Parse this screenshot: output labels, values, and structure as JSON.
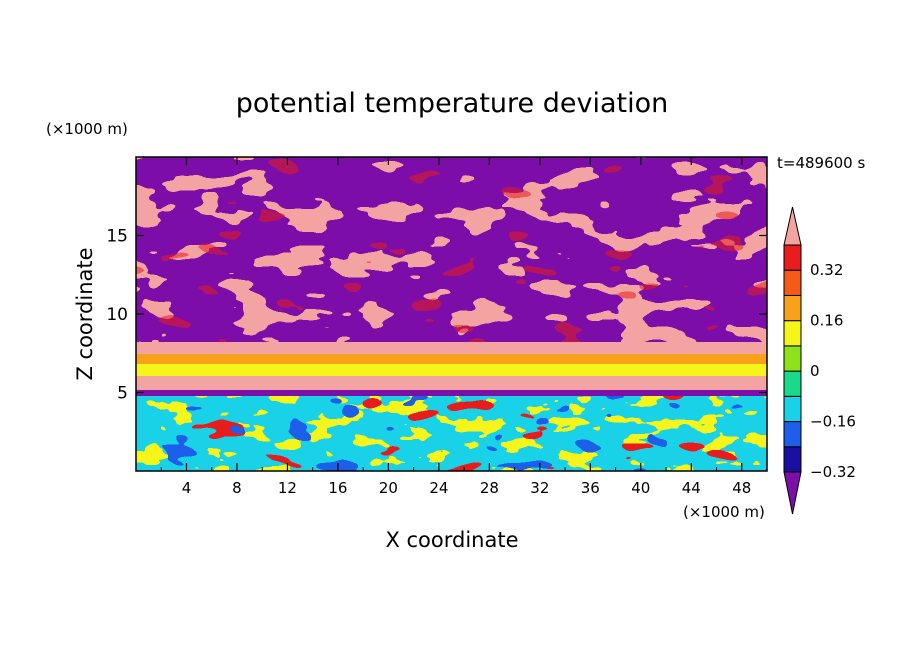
{
  "chart_data": {
    "type": "heatmap",
    "title": "potential temperature deviation",
    "time_label": "t=489600 s",
    "xlabel": "X coordinate",
    "ylabel": "Z coordinate",
    "x_unit": "(×1000 m)",
    "y_unit": "(×1000 m)",
    "xlim": [
      0,
      50
    ],
    "ylim": [
      0,
      20
    ],
    "x_ticks": [
      "4",
      "8",
      "12",
      "16",
      "20",
      "24",
      "28",
      "32",
      "36",
      "40",
      "44",
      "48"
    ],
    "y_ticks": [
      "5",
      "10",
      "15"
    ],
    "colorbar": {
      "levels": [
        -0.4,
        -0.32,
        -0.24,
        -0.16,
        -0.08,
        0,
        0.08,
        0.16,
        0.24,
        0.32,
        0.4
      ],
      "tick_labels": [
        "0.32",
        "0.16",
        "0",
        "−0.16",
        "−0.32"
      ],
      "colors": [
        "#7b0fa8",
        "#1a0fa0",
        "#1f5ee8",
        "#19d2e8",
        "#1bd98a",
        "#8ee21c",
        "#f5f51a",
        "#f7a21a",
        "#f55a18",
        "#e81e1e",
        "#f4a3a3"
      ],
      "extends": "both"
    },
    "bands": [
      {
        "z_range": [
          0,
          5
        ],
        "description_values": [
          -0.2,
          0.1,
          0.2,
          0.3
        ]
      },
      {
        "z_range": [
          5,
          8.5
        ],
        "description_values": [
          0.4,
          0.2,
          -0.4
        ]
      },
      {
        "z_range": [
          8.5,
          20
        ],
        "description_values": [
          0.4,
          -0.4
        ]
      }
    ]
  }
}
